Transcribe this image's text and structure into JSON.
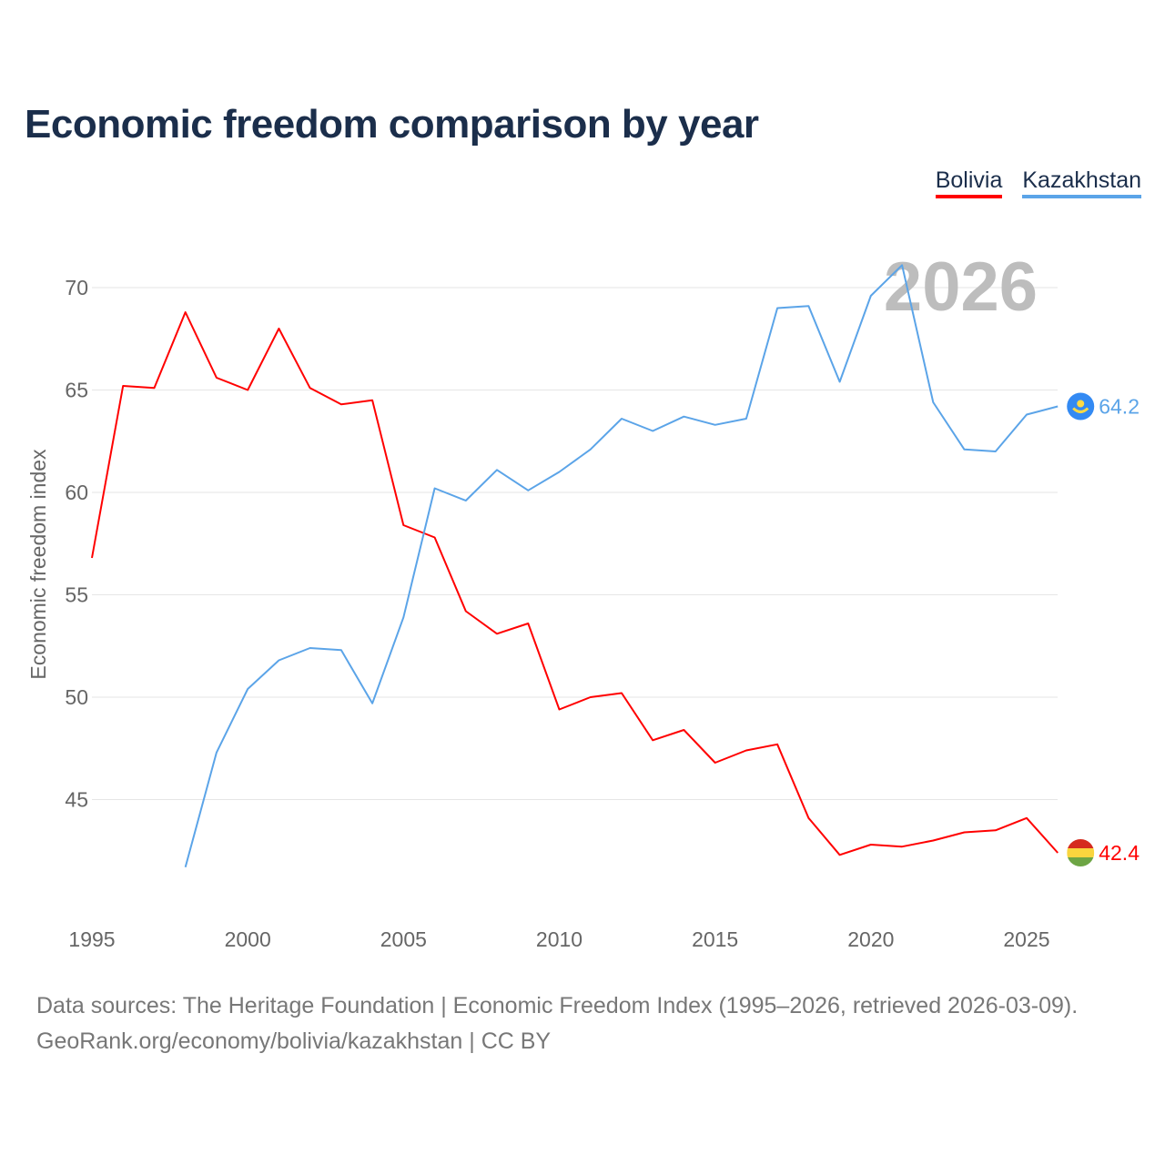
{
  "title": "Economic freedom comparison by year",
  "footer": {
    "line1": "Data sources: The Heritage Foundation | Economic Freedom Index (1995–2026, retrieved 2026-03-09).",
    "line2": "GeoRank.org/economy/bolivia/kazakhstan | CC BY"
  },
  "chart_data": {
    "type": "line",
    "title": "Economic freedom comparison by year",
    "xlabel": "",
    "ylabel": "Economic freedom index",
    "xlim": [
      1995,
      2026
    ],
    "ylim": [
      40,
      72
    ],
    "x_ticks": [
      1995,
      2000,
      2005,
      2010,
      2015,
      2020,
      2025
    ],
    "y_ticks": [
      45,
      50,
      55,
      60,
      65,
      70
    ],
    "grid": true,
    "legend_position": "top-right",
    "year_watermark": "2026",
    "series": [
      {
        "name": "Bolivia",
        "color": "#ff0000",
        "end_label": "42.4",
        "x": [
          1995,
          1996,
          1997,
          1998,
          1999,
          2000,
          2001,
          2002,
          2003,
          2004,
          2005,
          2006,
          2007,
          2008,
          2009,
          2010,
          2011,
          2012,
          2013,
          2014,
          2015,
          2016,
          2017,
          2018,
          2019,
          2020,
          2021,
          2022,
          2023,
          2024,
          2025,
          2026
        ],
        "values": [
          56.8,
          65.2,
          65.1,
          68.8,
          65.6,
          65.0,
          68.0,
          65.1,
          64.3,
          64.5,
          58.4,
          57.8,
          54.2,
          53.1,
          53.6,
          49.4,
          50.0,
          50.2,
          47.9,
          48.4,
          46.8,
          47.4,
          47.7,
          44.1,
          42.3,
          42.8,
          42.7,
          43.0,
          43.4,
          43.5,
          44.1,
          42.4
        ]
      },
      {
        "name": "Kazakhstan",
        "color": "#5ba4e8",
        "end_label": "64.2",
        "x": [
          1998,
          1999,
          2000,
          2001,
          2002,
          2003,
          2004,
          2005,
          2006,
          2007,
          2008,
          2009,
          2010,
          2011,
          2012,
          2013,
          2014,
          2015,
          2016,
          2017,
          2018,
          2019,
          2020,
          2021,
          2022,
          2023,
          2024,
          2025,
          2026
        ],
        "values": [
          41.7,
          47.3,
          50.4,
          51.8,
          52.4,
          52.3,
          49.7,
          53.9,
          60.2,
          59.6,
          61.1,
          60.1,
          61.0,
          62.1,
          63.6,
          63.0,
          63.7,
          63.3,
          63.6,
          69.0,
          69.1,
          65.4,
          69.6,
          71.1,
          64.4,
          62.1,
          62.0,
          63.8,
          64.2
        ]
      }
    ]
  }
}
